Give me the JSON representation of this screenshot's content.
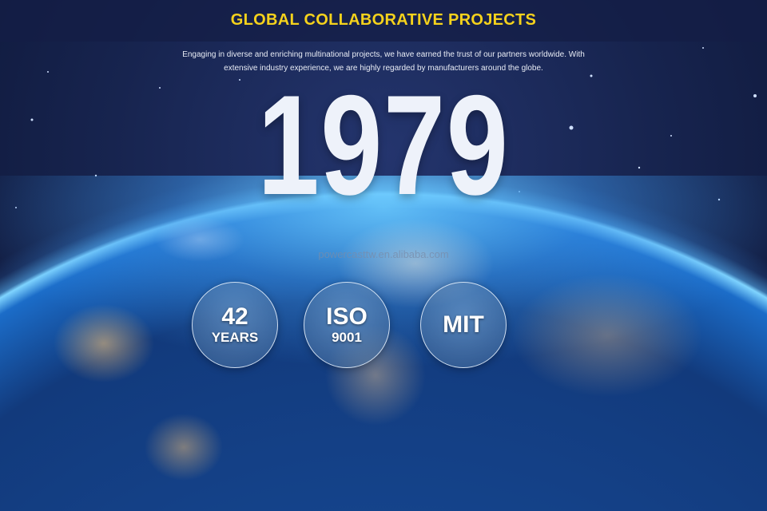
{
  "header": {
    "title": "GLOBAL COLLABORATIVE PROJECTS"
  },
  "intro": {
    "line1": "Engaging in diverse and enriching multinational projects, we have earned the trust of our partners worldwide. With",
    "line2": "extensive industry experience, we are highly regarded by manufacturers around the globe."
  },
  "hero": {
    "year": "1979",
    "watermark": "powercasttw.en.alibaba.com"
  },
  "badges": [
    {
      "main": "42",
      "sub": "YEARS"
    },
    {
      "main": "ISO",
      "sub": "9001"
    },
    {
      "main": "MIT",
      "sub": ""
    }
  ],
  "colors": {
    "title": "#f5d21c",
    "background": "#17244f",
    "globe": "#2b8be0"
  }
}
